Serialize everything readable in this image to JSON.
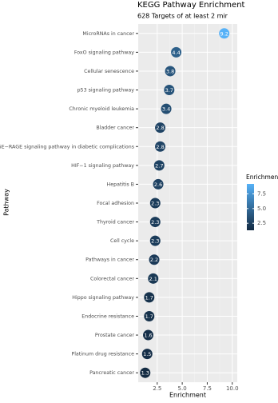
{
  "chart_data": {
    "type": "dot",
    "title": "KEGG Pathway Enrichment",
    "subtitle": "628 Targets of at least 2 mir",
    "x_label": "Enrichment",
    "y_label": "Pathway",
    "categories": [
      "MicroRNAs in cancer",
      "FoxO signaling pathway",
      "Cellular senescence",
      "p53 signaling pathway",
      "Chronic myeloid leukemia",
      "Bladder cancer",
      "AGE−RAGE signaling pathway in diabetic complications",
      "HIF−1 signaling pathway",
      "Hepatitis B",
      "Focal adhesion",
      "Thyroid cancer",
      "Cell cycle",
      "Pathways in cancer",
      "Colorectal cancer",
      "Hippo signaling pathway",
      "Endocrine resistance",
      "Prostate cancer",
      "Platinum drug resistance",
      "Pancreatic cancer"
    ],
    "values": [
      9.2,
      4.4,
      3.8,
      3.7,
      3.4,
      2.8,
      2.8,
      2.7,
      2.6,
      2.3,
      2.3,
      2.3,
      2.2,
      2.1,
      1.7,
      1.7,
      1.6,
      1.5,
      1.3
    ],
    "xlim": [
      0.6,
      10.5
    ],
    "xticks": [
      2.5,
      {
        "value": 5,
        "label": "5.0"
      },
      7.5,
      {
        "value": 10,
        "label": "10.0"
      }
    ],
    "grid": true,
    "color_low": "#132b43",
    "color_high": "#56b1f7",
    "legend": {
      "title": "Enrichment",
      "lim": [
        1.3,
        9.2
      ],
      "ticks": [
        2.5,
        {
          "value": 5,
          "label": "5.0"
        },
        7.5
      ]
    }
  }
}
